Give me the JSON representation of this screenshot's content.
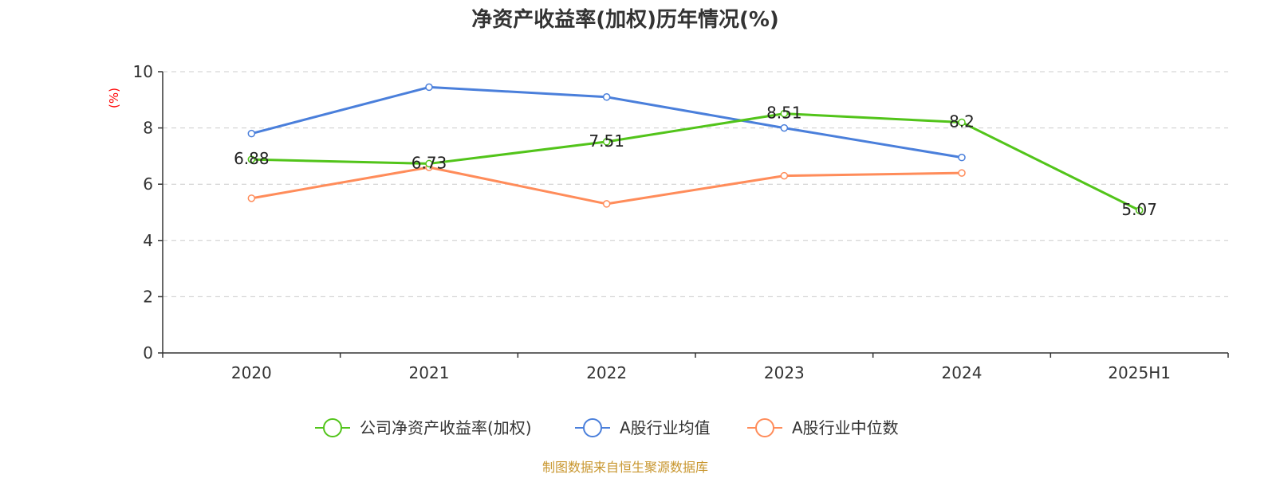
{
  "chart_data": {
    "type": "line",
    "title": "净资产收益率(加权)历年情况(%)",
    "ylabel": "(%)",
    "xlabel": "",
    "ylim": [
      0,
      10
    ],
    "yticks": [
      0,
      2,
      4,
      6,
      8,
      10
    ],
    "categories": [
      "2020",
      "2021",
      "2022",
      "2023",
      "2024",
      "2025H1"
    ],
    "grid": true,
    "legend_position": "bottom-center",
    "series": [
      {
        "name": "公司净资产收益率(加权)",
        "color": "#52c41a",
        "values": [
          6.88,
          6.73,
          7.51,
          8.51,
          8.2,
          5.07
        ],
        "labels": [
          "6.88",
          "6.73",
          "7.51",
          "8.51",
          "8.2",
          "5.07"
        ],
        "show_labels": true
      },
      {
        "name": "A股行业均值",
        "color": "#4a7fdb",
        "values": [
          7.8,
          9.45,
          9.1,
          8.0,
          6.95,
          null
        ],
        "show_labels": false
      },
      {
        "name": "A股行业中位数",
        "color": "#ff8c5a",
        "values": [
          5.5,
          6.6,
          5.3,
          6.3,
          6.4,
          null
        ],
        "show_labels": false
      }
    ]
  },
  "footer": {
    "source": "制图数据来自恒生聚源数据库"
  }
}
